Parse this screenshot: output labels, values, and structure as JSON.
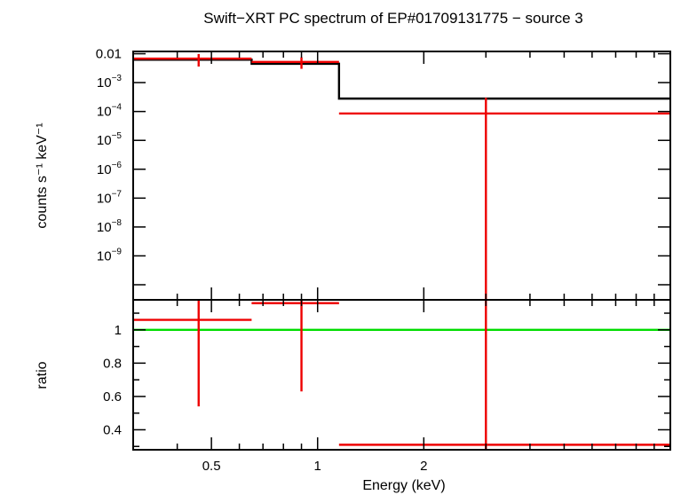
{
  "chart_data": {
    "type": "line",
    "title": "Swift−XRT PC spectrum of EP#01709131775 − source 3",
    "xlabel": "Energy (keV)",
    "xscale": "log",
    "xlim": [
      0.3,
      10
    ],
    "x_ticks": [
      {
        "value": 0.5,
        "label": "0.5"
      },
      {
        "value": 1,
        "label": "1"
      },
      {
        "value": 2,
        "label": "2"
      }
    ],
    "panels": [
      {
        "name": "spectrum",
        "ylabel": "counts s⁻¹ keV⁻¹",
        "yscale": "log",
        "ylim": [
          3e-11,
          0.012
        ],
        "y_ticks": [
          {
            "value": 0.01,
            "base": "0.01",
            "exp": ""
          },
          {
            "value": 0.001,
            "base": "10",
            "exp": "−3"
          },
          {
            "value": 0.0001,
            "base": "10",
            "exp": "−4"
          },
          {
            "value": 1e-05,
            "base": "10",
            "exp": "−5"
          },
          {
            "value": 1e-06,
            "base": "10",
            "exp": "−6"
          },
          {
            "value": 1e-07,
            "base": "10",
            "exp": "−7"
          },
          {
            "value": 1e-08,
            "base": "10",
            "exp": "−8"
          },
          {
            "value": 1e-09,
            "base": "10",
            "exp": "−9"
          }
        ],
        "series": [
          {
            "name": "data",
            "color": "#ee0000",
            "points": [
              {
                "x": 0.46,
                "xlo": 0.3,
                "xhi": 0.65,
                "y": 0.0068,
                "ylo": 0.0036,
                "yhi": 0.0098
              },
              {
                "x": 0.9,
                "xlo": 0.65,
                "xhi": 1.15,
                "y": 0.0052,
                "ylo": 0.003,
                "yhi": 0.0075
              },
              {
                "x": 3.0,
                "xlo": 1.15,
                "xhi": 10.0,
                "y": 8.5e-05,
                "ylo": 3e-11,
                "yhi": 0.0003
              }
            ]
          },
          {
            "name": "model",
            "color": "#000000",
            "steps": [
              {
                "xlo": 0.3,
                "xhi": 0.65,
                "y": 0.0062
              },
              {
                "xlo": 0.65,
                "xhi": 1.15,
                "y": 0.0045
              },
              {
                "xlo": 1.15,
                "xhi": 10.0,
                "y": 0.00028
              }
            ]
          }
        ]
      },
      {
        "name": "ratio",
        "ylabel": "ratio",
        "yscale": "linear",
        "ylim": [
          0.28,
          1.18
        ],
        "y_ticks": [
          {
            "value": 0.4,
            "label": "0.4"
          },
          {
            "value": 0.6,
            "label": "0.6"
          },
          {
            "value": 0.8,
            "label": "0.8"
          },
          {
            "value": 1.0,
            "label": "1"
          }
        ],
        "reference_line": {
          "y": 1.0,
          "color": "#00dd00"
        },
        "series": [
          {
            "name": "ratio",
            "color": "#ee0000",
            "points": [
              {
                "x": 0.46,
                "xlo": 0.3,
                "xhi": 0.65,
                "y": 1.06,
                "ylo": 0.54,
                "yhi": 1.18
              },
              {
                "x": 0.9,
                "xlo": 0.65,
                "xhi": 1.15,
                "y": 1.16,
                "ylo": 0.63,
                "yhi": 1.18
              },
              {
                "x": 3.0,
                "xlo": 1.15,
                "xhi": 10.0,
                "y": 0.31,
                "ylo": 0.28,
                "yhi": 1.18
              }
            ]
          }
        ]
      }
    ]
  }
}
